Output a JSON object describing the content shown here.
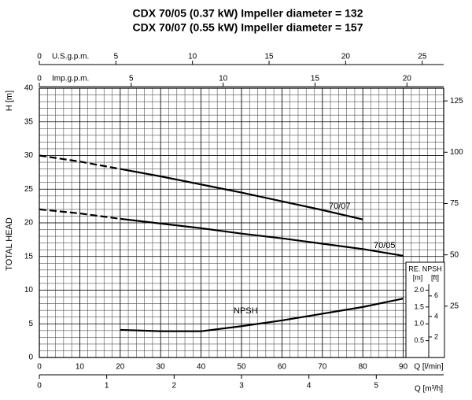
{
  "chart_data": {
    "type": "line",
    "title": "CDX 70/05 (0.37 kW) Impeller diameter = 132",
    "subtitle": "CDX 70/07 (0.55 kW) Impeller diameter = 157",
    "xlabel": "Q [l/min]",
    "ylabel": "TOTAL HEAD",
    "ylabel_unit": "H [m]",
    "xlim": [
      0,
      100
    ],
    "xticks": [
      0,
      10,
      20,
      30,
      40,
      50,
      60,
      70,
      80,
      90
    ],
    "ylim": [
      0,
      40
    ],
    "yticks": [
      0,
      5,
      10,
      15,
      20,
      25,
      30,
      35,
      40
    ],
    "y2lim": [
      0,
      131.2
    ],
    "y2ticks": [
      25,
      50,
      75,
      100,
      125
    ],
    "grid": true,
    "grid_step_x": 2,
    "grid_step_y": 1,
    "secondary_x_axes": [
      {
        "label": "U.S.g.p.m.",
        "lim": [
          0,
          26.4
        ],
        "ticks": [
          0,
          5,
          10,
          15,
          20,
          25
        ],
        "position": "top"
      },
      {
        "label": "Imp.g.p.m.",
        "lim": [
          0,
          22
        ],
        "ticks": [
          0,
          5,
          10,
          15,
          20
        ],
        "position": "top"
      },
      {
        "label": "Q [m³/h]",
        "lim": [
          0,
          6
        ],
        "ticks": [
          0,
          1,
          2,
          3,
          4,
          5
        ],
        "position": "bottom"
      }
    ],
    "npsh_inset": {
      "title": "RE. NPSH",
      "m_label": "[m]",
      "ft_label": "[ft]",
      "m_lim": [
        0,
        8
      ],
      "m_ticks": [
        {
          "value": 0.5,
          "label": "0.5"
        },
        {
          "value": 1,
          "label": "1.0"
        },
        {
          "value": 1.5,
          "label": "1.5"
        },
        {
          "value": 2,
          "label": "2.0"
        }
      ],
      "ft_lim": [
        0,
        26.25
      ],
      "ft_ticks": [
        2,
        4,
        6
      ]
    },
    "x": [
      0,
      10,
      20,
      30,
      40,
      50,
      60,
      70,
      80,
      90
    ],
    "series": [
      {
        "name": "70/07",
        "color": "#000000",
        "dashed_below": 20,
        "values": [
          30,
          29.1,
          28,
          26.9,
          25.7,
          24.5,
          23.2,
          21.9,
          20.5,
          null
        ]
      },
      {
        "name": "70/05",
        "color": "#000000",
        "dashed_below": 20,
        "values": [
          22,
          21.4,
          20.6,
          19.9,
          19.2,
          18.4,
          17.7,
          16.9,
          16.1,
          15.1
        ]
      },
      {
        "name": "NPSH",
        "color": "#000000",
        "axis": "npsh",
        "values": [
          null,
          null,
          0.82,
          0.78,
          0.78,
          0.93,
          1.1,
          1.3,
          1.5,
          1.75
        ]
      }
    ]
  }
}
